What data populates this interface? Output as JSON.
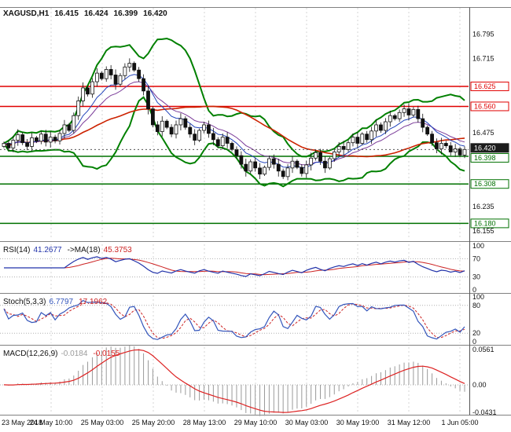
{
  "header": {
    "symbol": "XAGUSD,H1",
    "open": "16.415",
    "high": "16.424",
    "low": "16.399",
    "close": "16.420"
  },
  "rsi_panel": {
    "title": "RSI(14)",
    "value": "41.2677",
    "ma_label": "->MA(18)",
    "ma_value": "45.3753"
  },
  "stoch_panel": {
    "title": "Stoch(5,3,3)",
    "k_value": "6.7797",
    "d_value": "17.1962"
  },
  "macd_panel": {
    "title": "MACD(12,26,9)",
    "value": "-0.0184",
    "signal_value": "-0.0155"
  },
  "colors": {
    "up_body": "#ffffff",
    "down_body": "#111111",
    "candle_border": "#111111",
    "bollinger": "#008000",
    "ma_slow": "#cc2200",
    "ma_fast": "#2244bb",
    "ma_mid": "#7a3b99",
    "resistance": "#e00000",
    "support": "#007000",
    "price_badge_bg": "#1c1c1c",
    "price_badge_text": "#ffffff",
    "rsi": "#2233aa",
    "rsi_ma": "#cc2222",
    "stoch_k": "#3355bb",
    "stoch_d": "#cc2222",
    "macd_hist": "#9a9a9a",
    "macd_signal": "#dd2222",
    "grid": "#d6d6d6",
    "level_dots": "#b0b0b0",
    "separator": "#808080",
    "frame": "#555555",
    "axis_text": "#111111"
  },
  "chart_data": {
    "type": "candlestick",
    "symbol": "XAGUSD",
    "timeframe": "H1",
    "title": "XAGUSD,H1",
    "ohlc_display": {
      "open": 16.415,
      "high": 16.424,
      "low": 16.399,
      "close": 16.42
    },
    "x_labels": [
      "23 May 2018",
      "24 May 10:00",
      "25 May 03:00",
      "25 May 20:00",
      "28 May 13:00",
      "29 May 10:00",
      "30 May 03:00",
      "30 May 19:00",
      "31 May 12:00",
      "1 Jun 05:00"
    ],
    "y_ticks": [
      16.795,
      16.715,
      16.475,
      16.235,
      16.155
    ],
    "ylim": [
      16.13,
      16.88
    ],
    "closes": [
      16.44,
      16.425,
      16.45,
      16.468,
      16.442,
      16.43,
      16.458,
      16.447,
      16.47,
      16.444,
      16.46,
      16.448,
      16.472,
      16.5,
      16.482,
      16.53,
      16.578,
      16.62,
      16.6,
      16.64,
      16.668,
      16.65,
      16.68,
      16.662,
      16.632,
      16.66,
      16.688,
      16.7,
      16.678,
      16.65,
      16.61,
      16.552,
      16.5,
      16.478,
      16.512,
      16.492,
      16.47,
      16.5,
      16.52,
      16.492,
      16.47,
      16.45,
      16.482,
      16.5,
      16.472,
      16.452,
      16.432,
      16.46,
      16.44,
      16.42,
      16.4,
      16.372,
      16.35,
      16.38,
      16.36,
      16.34,
      16.362,
      16.39,
      16.372,
      16.35,
      16.332,
      16.36,
      16.382,
      16.362,
      16.342,
      16.37,
      16.392,
      16.41,
      16.382,
      16.36,
      16.39,
      16.412,
      16.43,
      16.42,
      16.442,
      16.46,
      16.44,
      16.47,
      16.452,
      16.48,
      16.5,
      16.482,
      16.51,
      16.53,
      16.52,
      16.54,
      16.552,
      16.532,
      16.55,
      16.52,
      16.492,
      16.47,
      16.442,
      16.422,
      16.44,
      16.432,
      16.412,
      16.422,
      16.402,
      16.42
    ],
    "key_levels": {
      "resistance": [
        16.625,
        16.56
      ],
      "support": [
        16.398,
        16.308,
        16.18
      ]
    },
    "current_price": 16.42,
    "indicators": {
      "bollinger": {
        "period": 14,
        "deviation": 2.2
      },
      "moving_averages": [
        {
          "type": "sma",
          "period": 34
        },
        {
          "type": "ema",
          "period": 8
        },
        {
          "type": "ema",
          "period": 13
        }
      ],
      "rsi": {
        "period": 14,
        "value": 41.2677,
        "ma_period": 18,
        "ma_value": 45.3753,
        "levels": [
          100,
          70,
          30,
          0
        ]
      },
      "stochastic": {
        "k": 5,
        "d": 3,
        "slowing": 3,
        "k_value": 6.7797,
        "d_value": 17.1962,
        "levels": [
          100,
          80,
          20,
          0
        ]
      },
      "macd": {
        "fast": 12,
        "slow": 26,
        "signal": 9,
        "value": -0.0184,
        "signal_value": -0.0155,
        "ylim": [
          -0.0431,
          0.0561
        ],
        "scale_labels": [
          "0.0561",
          "0.00",
          "-0.0431"
        ]
      }
    }
  }
}
